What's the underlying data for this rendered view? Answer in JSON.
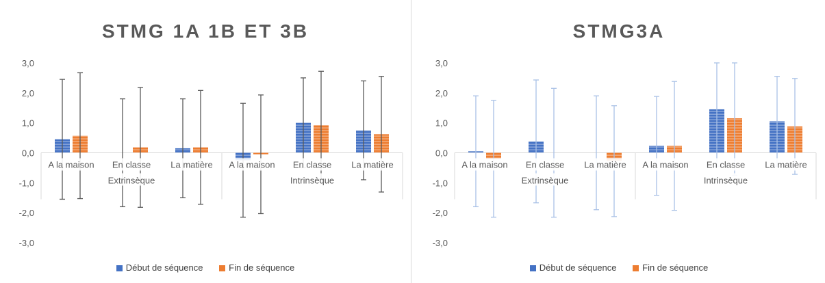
{
  "colors": {
    "debut": "#4472C4",
    "fin": "#ED7D31",
    "axis": "#d9d9d9",
    "text": "#595959",
    "error_left": "#595959",
    "error_right": "#a9c1e6"
  },
  "chart_data": [
    {
      "type": "bar",
      "title": "STMG 1A 1B ET 3B",
      "ylim": [
        -3,
        3
      ],
      "yticks": [
        "-3,0",
        "-2,0",
        "-1,0",
        "0,0",
        "1,0",
        "2,0",
        "3,0"
      ],
      "categories": [
        "A la maison",
        "En classe",
        "La matière",
        "A la maison",
        "En classe",
        "La matière"
      ],
      "groups": [
        "Extrinsèque",
        "Intrinsèque"
      ],
      "grid": false,
      "legend_position": "bottom",
      "series": [
        {
          "name": "Début de séquence",
          "values": [
            0.45,
            0.0,
            0.15,
            -0.25,
            1.0,
            0.75
          ],
          "errors": [
            2.0,
            1.8,
            1.65,
            1.9,
            1.5,
            1.65
          ]
        },
        {
          "name": "Fin de séquence",
          "values": [
            0.57,
            0.18,
            0.18,
            -0.05,
            0.92,
            0.62
          ],
          "errors": [
            2.1,
            2.0,
            1.9,
            1.98,
            1.8,
            1.93
          ]
        }
      ]
    },
    {
      "type": "bar",
      "title": "STMG3A",
      "ylim": [
        -3,
        3
      ],
      "yticks": [
        "-3,0",
        "-2,0",
        "-1,0",
        "0,0",
        "1,0",
        "2,0",
        "3,0"
      ],
      "categories": [
        "A la maison",
        "En classe",
        "La matière",
        "A la maison",
        "En classe",
        "La matière"
      ],
      "groups": [
        "Extrinsèque",
        "Intrinsèque"
      ],
      "grid": false,
      "legend_position": "bottom",
      "series": [
        {
          "name": "Début de séquence",
          "values": [
            0.05,
            0.38,
            0.0,
            0.23,
            1.45,
            1.05
          ],
          "errors": [
            1.85,
            2.05,
            1.9,
            1.65,
            1.9,
            1.5
          ]
        },
        {
          "name": "Fin de séquence",
          "values": [
            -0.2,
            0.0,
            -0.28,
            0.23,
            1.15,
            0.88
          ],
          "errors": [
            1.95,
            2.15,
            1.85,
            2.15,
            1.9,
            1.6
          ]
        }
      ]
    }
  ]
}
